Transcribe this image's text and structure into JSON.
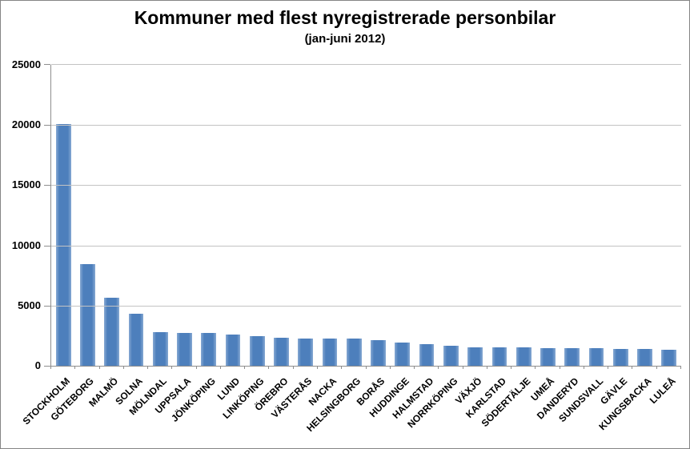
{
  "chart_data": {
    "type": "bar",
    "title": "Kommuner med flest nyregistrerade personbilar",
    "subtitle": "(jan-juni 2012)",
    "categories": [
      "STOCKHOLM",
      "GÖTEBORG",
      "MALMÖ",
      "SOLNA",
      "MÖLNDAL",
      "UPPSALA",
      "JÖNKÖPING",
      "LUND",
      "LINKÖPING",
      "ÖREBRO",
      "VÄSTERÅS",
      "NACKA",
      "HELSINGBORG",
      "BORÅS",
      "HUDDINGE",
      "HALMSTAD",
      "NORRKÖPING",
      "VÄXJÖ",
      "KARLSTAD",
      "SÖDERTÄLJE",
      "UMEÅ",
      "DANDERYD",
      "SUNDSVALL",
      "GÄVLE",
      "KUNGSBACKA",
      "LULEÅ"
    ],
    "values": [
      20100,
      8450,
      5650,
      4300,
      2800,
      2750,
      2700,
      2600,
      2450,
      2300,
      2290,
      2260,
      2250,
      2150,
      1930,
      1820,
      1680,
      1550,
      1520,
      1500,
      1480,
      1460,
      1440,
      1420,
      1390,
      1360
    ],
    "xlabel": "",
    "ylabel": "",
    "ylim": [
      0,
      25000
    ],
    "ytick_step": 5000,
    "ytick_labels": [
      "0",
      "5000",
      "10000",
      "15000",
      "20000",
      "25000"
    ],
    "grid": true,
    "legend": false,
    "colors": {
      "bar": "#4d7fbc",
      "bar_edge_highlight": "#87a9d3",
      "gridline": "#c3c3c3",
      "axis": "#8e8e8e",
      "text": "#000000",
      "background": "#ffffff"
    }
  }
}
